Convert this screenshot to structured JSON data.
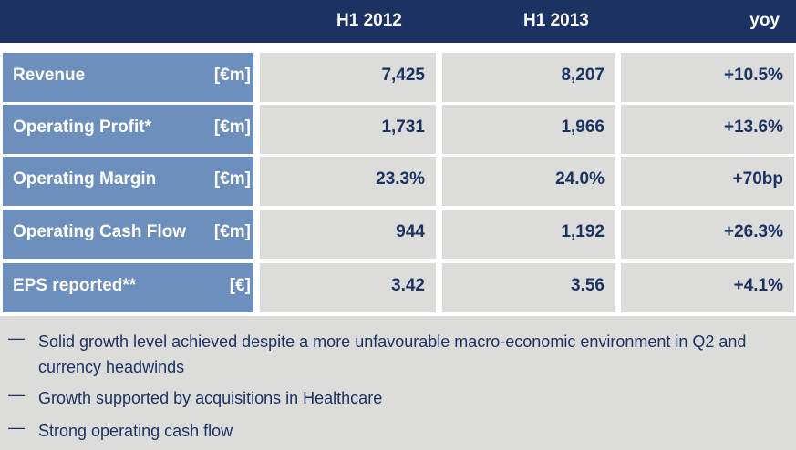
{
  "header": {
    "col1": "H1 2012",
    "col2": "H1 2013",
    "col3": "yoy"
  },
  "rows": [
    {
      "label": "Revenue",
      "unit": "[€m]",
      "h1_2012": "7,425",
      "h1_2013": "8,207",
      "yoy": "+10.5%"
    },
    {
      "label": "Operating Profit*",
      "unit": "[€m]",
      "h1_2012": "1,731",
      "h1_2013": "1,966",
      "yoy": "+13.6%"
    },
    {
      "label": "Operating Margin",
      "unit": "[€m]",
      "h1_2012": "23.3%",
      "h1_2013": "24.0%",
      "yoy": "+70bp"
    },
    {
      "label": "Operating Cash Flow",
      "unit": "[€m]",
      "h1_2012": "944",
      "h1_2013": "1,192",
      "yoy": "+26.3%"
    },
    {
      "label": "EPS reported**",
      "unit": "[€]",
      "h1_2012": "3.42",
      "h1_2013": "3.56",
      "yoy": "+4.1%"
    }
  ],
  "notes": {
    "dash": "—",
    "items": [
      "Solid growth level achieved despite a more unfavourable macro-economic environment in Q2 and currency headwinds",
      "Growth supported by acquisitions in Healthcare",
      "Strong operating cash flow"
    ]
  },
  "colors": {
    "header_bg": "#1b3262",
    "label_bg": "#6d8fbd",
    "cell_bg": "#dcdcdb",
    "text_dark": "#1b3262"
  }
}
